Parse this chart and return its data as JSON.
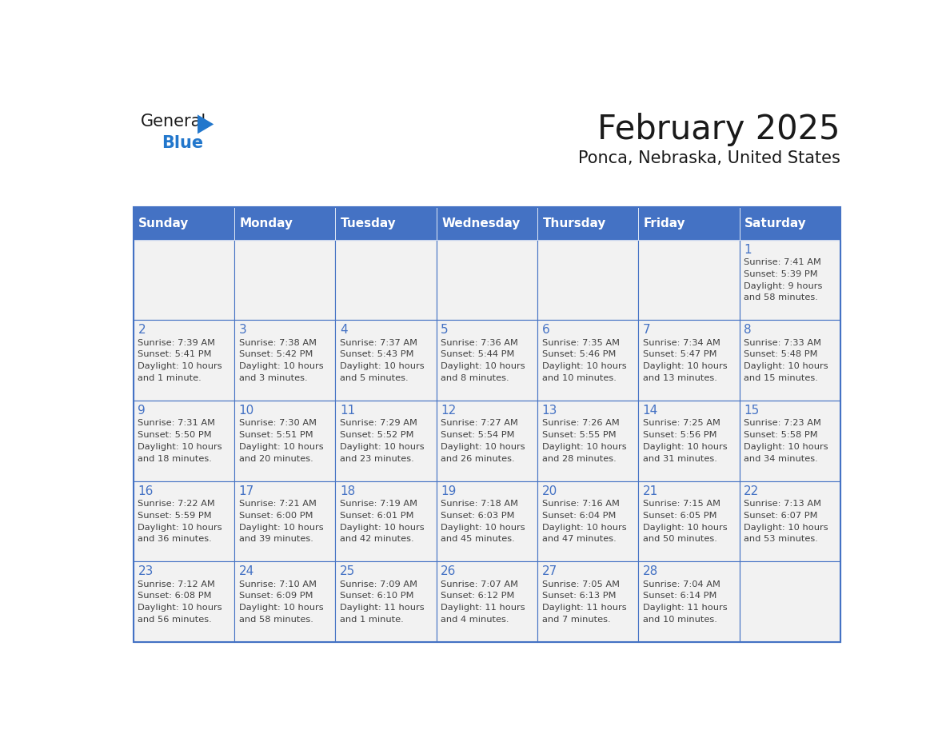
{
  "title": "February 2025",
  "subtitle": "Ponca, Nebraska, United States",
  "header_color": "#4472C4",
  "header_text_color": "#FFFFFF",
  "cell_bg_color": "#F2F2F2",
  "border_color": "#4472C4",
  "day_number_color": "#4472C4",
  "text_color": "#404040",
  "days_of_week": [
    "Sunday",
    "Monday",
    "Tuesday",
    "Wednesday",
    "Thursday",
    "Friday",
    "Saturday"
  ],
  "weeks": [
    [
      {
        "day": "",
        "sunrise": "",
        "sunset": "",
        "daylight": ""
      },
      {
        "day": "",
        "sunrise": "",
        "sunset": "",
        "daylight": ""
      },
      {
        "day": "",
        "sunrise": "",
        "sunset": "",
        "daylight": ""
      },
      {
        "day": "",
        "sunrise": "",
        "sunset": "",
        "daylight": ""
      },
      {
        "day": "",
        "sunrise": "",
        "sunset": "",
        "daylight": ""
      },
      {
        "day": "",
        "sunrise": "",
        "sunset": "",
        "daylight": ""
      },
      {
        "day": "1",
        "sunrise": "7:41 AM",
        "sunset": "5:39 PM",
        "daylight": "9 hours\nand 58 minutes."
      }
    ],
    [
      {
        "day": "2",
        "sunrise": "7:39 AM",
        "sunset": "5:41 PM",
        "daylight": "10 hours\nand 1 minute."
      },
      {
        "day": "3",
        "sunrise": "7:38 AM",
        "sunset": "5:42 PM",
        "daylight": "10 hours\nand 3 minutes."
      },
      {
        "day": "4",
        "sunrise": "7:37 AM",
        "sunset": "5:43 PM",
        "daylight": "10 hours\nand 5 minutes."
      },
      {
        "day": "5",
        "sunrise": "7:36 AM",
        "sunset": "5:44 PM",
        "daylight": "10 hours\nand 8 minutes."
      },
      {
        "day": "6",
        "sunrise": "7:35 AM",
        "sunset": "5:46 PM",
        "daylight": "10 hours\nand 10 minutes."
      },
      {
        "day": "7",
        "sunrise": "7:34 AM",
        "sunset": "5:47 PM",
        "daylight": "10 hours\nand 13 minutes."
      },
      {
        "day": "8",
        "sunrise": "7:33 AM",
        "sunset": "5:48 PM",
        "daylight": "10 hours\nand 15 minutes."
      }
    ],
    [
      {
        "day": "9",
        "sunrise": "7:31 AM",
        "sunset": "5:50 PM",
        "daylight": "10 hours\nand 18 minutes."
      },
      {
        "day": "10",
        "sunrise": "7:30 AM",
        "sunset": "5:51 PM",
        "daylight": "10 hours\nand 20 minutes."
      },
      {
        "day": "11",
        "sunrise": "7:29 AM",
        "sunset": "5:52 PM",
        "daylight": "10 hours\nand 23 minutes."
      },
      {
        "day": "12",
        "sunrise": "7:27 AM",
        "sunset": "5:54 PM",
        "daylight": "10 hours\nand 26 minutes."
      },
      {
        "day": "13",
        "sunrise": "7:26 AM",
        "sunset": "5:55 PM",
        "daylight": "10 hours\nand 28 minutes."
      },
      {
        "day": "14",
        "sunrise": "7:25 AM",
        "sunset": "5:56 PM",
        "daylight": "10 hours\nand 31 minutes."
      },
      {
        "day": "15",
        "sunrise": "7:23 AM",
        "sunset": "5:58 PM",
        "daylight": "10 hours\nand 34 minutes."
      }
    ],
    [
      {
        "day": "16",
        "sunrise": "7:22 AM",
        "sunset": "5:59 PM",
        "daylight": "10 hours\nand 36 minutes."
      },
      {
        "day": "17",
        "sunrise": "7:21 AM",
        "sunset": "6:00 PM",
        "daylight": "10 hours\nand 39 minutes."
      },
      {
        "day": "18",
        "sunrise": "7:19 AM",
        "sunset": "6:01 PM",
        "daylight": "10 hours\nand 42 minutes."
      },
      {
        "day": "19",
        "sunrise": "7:18 AM",
        "sunset": "6:03 PM",
        "daylight": "10 hours\nand 45 minutes."
      },
      {
        "day": "20",
        "sunrise": "7:16 AM",
        "sunset": "6:04 PM",
        "daylight": "10 hours\nand 47 minutes."
      },
      {
        "day": "21",
        "sunrise": "7:15 AM",
        "sunset": "6:05 PM",
        "daylight": "10 hours\nand 50 minutes."
      },
      {
        "day": "22",
        "sunrise": "7:13 AM",
        "sunset": "6:07 PM",
        "daylight": "10 hours\nand 53 minutes."
      }
    ],
    [
      {
        "day": "23",
        "sunrise": "7:12 AM",
        "sunset": "6:08 PM",
        "daylight": "10 hours\nand 56 minutes."
      },
      {
        "day": "24",
        "sunrise": "7:10 AM",
        "sunset": "6:09 PM",
        "daylight": "10 hours\nand 58 minutes."
      },
      {
        "day": "25",
        "sunrise": "7:09 AM",
        "sunset": "6:10 PM",
        "daylight": "11 hours\nand 1 minute."
      },
      {
        "day": "26",
        "sunrise": "7:07 AM",
        "sunset": "6:12 PM",
        "daylight": "11 hours\nand 4 minutes."
      },
      {
        "day": "27",
        "sunrise": "7:05 AM",
        "sunset": "6:13 PM",
        "daylight": "11 hours\nand 7 minutes."
      },
      {
        "day": "28",
        "sunrise": "7:04 AM",
        "sunset": "6:14 PM",
        "daylight": "11 hours\nand 10 minutes."
      },
      {
        "day": "",
        "sunrise": "",
        "sunset": "",
        "daylight": ""
      }
    ]
  ],
  "logo_general_color": "#1a1a1a",
  "logo_blue_color": "#2277CC",
  "logo_triangle_color": "#2277CC"
}
